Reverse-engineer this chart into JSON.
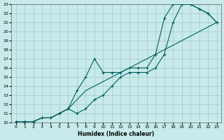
{
  "xlabel": "Humidex (Indice chaleur)",
  "bg_color": "#c8eaea",
  "grid_color": "#a0c8c8",
  "line_color": "#006060",
  "xlim": [
    -0.5,
    23.5
  ],
  "ylim": [
    10,
    23
  ],
  "xticks": [
    0,
    1,
    2,
    3,
    4,
    5,
    6,
    7,
    8,
    9,
    10,
    11,
    12,
    13,
    14,
    15,
    16,
    17,
    18,
    19,
    20,
    21,
    22,
    23
  ],
  "yticks": [
    10,
    11,
    12,
    13,
    14,
    15,
    16,
    17,
    18,
    19,
    20,
    21,
    22,
    23
  ],
  "line1_x": [
    0,
    1,
    2,
    3,
    4,
    5,
    6,
    7,
    8,
    9,
    10,
    11,
    12,
    13,
    14,
    15,
    16,
    17,
    18,
    19,
    20,
    21,
    22,
    23
  ],
  "line1_y": [
    10.1,
    10.1,
    10.1,
    10.5,
    10.5,
    11.0,
    11.5,
    11.0,
    11.5,
    12.5,
    13.0,
    14.0,
    15.0,
    15.5,
    15.5,
    15.5,
    16.0,
    17.5,
    21.0,
    23.0,
    23.0,
    22.5,
    22.0,
    21.0
  ],
  "line2_x": [
    0,
    1,
    2,
    3,
    4,
    5,
    6,
    7,
    8,
    9,
    10,
    11,
    12,
    13,
    14,
    15,
    16,
    17,
    18,
    19,
    20,
    21,
    22,
    23
  ],
  "line2_y": [
    10.1,
    10.1,
    10.1,
    10.5,
    10.5,
    11.0,
    11.5,
    13.5,
    15.0,
    17.0,
    15.5,
    15.5,
    15.5,
    16.0,
    16.0,
    16.0,
    17.5,
    21.5,
    23.0,
    23.0,
    23.0,
    22.5,
    22.0,
    21.0
  ],
  "line3_x": [
    0,
    1,
    2,
    3,
    4,
    5,
    6,
    7,
    8,
    9,
    10,
    11,
    12,
    13,
    14,
    15,
    16,
    17,
    18,
    19,
    20,
    21,
    22,
    23
  ],
  "line3_y": [
    10.1,
    10.1,
    10.1,
    10.5,
    10.5,
    11.0,
    11.5,
    12.5,
    13.5,
    14.0,
    14.5,
    15.0,
    15.5,
    16.0,
    16.5,
    17.0,
    17.5,
    18.0,
    18.5,
    19.0,
    19.5,
    20.0,
    20.5,
    21.0
  ]
}
